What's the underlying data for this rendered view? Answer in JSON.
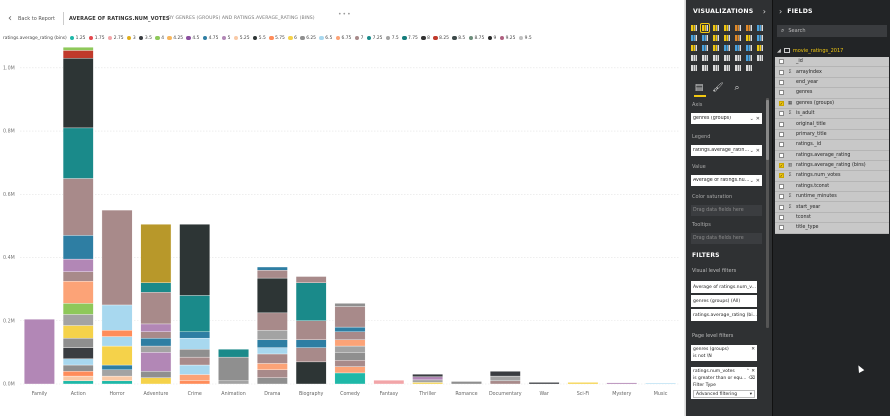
{
  "report": {
    "back_label": "Back to Report",
    "title": "AVERAGE OF RATINGS.NUM_VOTES",
    "subtitle": "BY GENRES (GROUPS) AND RATINGS.AVERAGE_RATING (BINS)"
  },
  "legend": {
    "title": "ratings.average_rating (bins)",
    "items": [
      {
        "label": "1.25",
        "color": "#1fb8a8"
      },
      {
        "label": "1.75",
        "color": "#e4484e"
      },
      {
        "label": "2.75",
        "color": "#f2a5a8"
      },
      {
        "label": "3",
        "color": "#e0ad1b"
      },
      {
        "label": "3.5",
        "color": "#3a3d41"
      },
      {
        "label": "4",
        "color": "#8ec85a"
      },
      {
        "label": "4.25",
        "color": "#f7b75e"
      },
      {
        "label": "4.5",
        "color": "#8b4f9f"
      },
      {
        "label": "4.75",
        "color": "#2e7ea3"
      },
      {
        "label": "5",
        "color": "#b287b6"
      },
      {
        "label": "5.25",
        "color": "#f9c9a6"
      },
      {
        "label": "5.5",
        "color": "#2d3535"
      },
      {
        "label": "5.75",
        "color": "#ff8c5a"
      },
      {
        "label": "6",
        "color": "#f5d24a"
      },
      {
        "label": "6.25",
        "color": "#8f8f8f"
      },
      {
        "label": "6.5",
        "color": "#a8d8ef"
      },
      {
        "label": "6.75",
        "color": "#fca377"
      },
      {
        "label": "7",
        "color": "#a88a8a"
      },
      {
        "label": "7.25",
        "color": "#1a8a8a"
      },
      {
        "label": "7.5",
        "color": "#a3a3a3"
      },
      {
        "label": "7.75",
        "color": "#147d7b"
      },
      {
        "label": "8",
        "color": "#333333"
      },
      {
        "label": "8.25",
        "color": "#c0392b"
      },
      {
        "label": "8.5",
        "color": "#3d4a4a"
      },
      {
        "label": "8.75",
        "color": "#6b8c7a"
      },
      {
        "label": "9",
        "color": "#2a2a2a"
      },
      {
        "label": "9.25",
        "color": "#b06080"
      },
      {
        "label": "9.5",
        "color": "#c0c0c0"
      }
    ]
  },
  "chart_data": {
    "type": "bar",
    "stacked": true,
    "title": "AVERAGE OF RATINGS.NUM_VOTES",
    "xlabel": "",
    "ylabel": "",
    "ylim": [
      0,
      1050000
    ],
    "y_ticks": [
      0,
      200000,
      400000,
      600000,
      800000,
      1000000
    ],
    "y_tick_labels": [
      "0.0M",
      "0.2M",
      "0.4M",
      "0.6M",
      "0.8M",
      "1.0M"
    ],
    "grid": true,
    "categories": [
      "Family",
      "Action",
      "Horror",
      "Adventure",
      "Crime",
      "Animation",
      "Drama",
      "Biography",
      "Comedy",
      "Fantasy",
      "Thriller",
      "Romance",
      "Documentary",
      "War",
      "Sci-Fi",
      "Mystery",
      "Music"
    ],
    "segments": [
      [
        {
          "value": 205000,
          "color": "#b287b6"
        }
      ],
      [
        {
          "value": 10000,
          "color": "#1fb8a8"
        },
        {
          "value": 15000,
          "color": "#f9c9a6"
        },
        {
          "value": 15000,
          "color": "#ff8c5a"
        },
        {
          "value": 20000,
          "color": "#8f8f8f"
        },
        {
          "value": 20000,
          "color": "#a8d8ef"
        },
        {
          "value": 35000,
          "color": "#3a3d41"
        },
        {
          "value": 30000,
          "color": "#8f8f8f"
        },
        {
          "value": 40000,
          "color": "#f5d24a"
        },
        {
          "value": 35000,
          "color": "#a3a3a3"
        },
        {
          "value": 35000,
          "color": "#8ec85a"
        },
        {
          "value": 70000,
          "color": "#fca377"
        },
        {
          "value": 30000,
          "color": "#a88a8a"
        },
        {
          "value": 40000,
          "color": "#b287b6"
        },
        {
          "value": 75000,
          "color": "#2e7ea3"
        },
        {
          "value": 180000,
          "color": "#a88a8a"
        },
        {
          "value": 160000,
          "color": "#1a8a8a"
        },
        {
          "value": 220000,
          "color": "#2d3535"
        },
        {
          "value": 25000,
          "color": "#c0392b"
        },
        {
          "value": 10000,
          "color": "#8ec85a"
        }
      ],
      [
        {
          "value": 10000,
          "color": "#1fb8a8"
        },
        {
          "value": 15000,
          "color": "#f9c9a6"
        },
        {
          "value": 20000,
          "color": "#a3a3a3"
        },
        {
          "value": 15000,
          "color": "#2e7ea3"
        },
        {
          "value": 60000,
          "color": "#f5d24a"
        },
        {
          "value": 30000,
          "color": "#a8d8ef"
        },
        {
          "value": 20000,
          "color": "#ff8c5a"
        },
        {
          "value": 80000,
          "color": "#a8d8ef"
        },
        {
          "value": 300000,
          "color": "#a88a8a"
        }
      ],
      [
        {
          "value": 20000,
          "color": "#f5d24a"
        },
        {
          "value": 20000,
          "color": "#8f8f8f"
        },
        {
          "value": 60000,
          "color": "#b287b6"
        },
        {
          "value": 20000,
          "color": "#a3a3a3"
        },
        {
          "value": 25000,
          "color": "#2e7ea3"
        },
        {
          "value": 20000,
          "color": "#a88a8a"
        },
        {
          "value": 25000,
          "color": "#b287b6"
        },
        {
          "value": 100000,
          "color": "#a88a8a"
        },
        {
          "value": 30000,
          "color": "#1a8a8a"
        },
        {
          "value": 185000,
          "color": "#b8982a"
        }
      ],
      [
        {
          "value": 10000,
          "color": "#ff8c5a"
        },
        {
          "value": 20000,
          "color": "#fca377"
        },
        {
          "value": 30000,
          "color": "#a8d8ef"
        },
        {
          "value": 25000,
          "color": "#a88a8a"
        },
        {
          "value": 25000,
          "color": "#8f8f8f"
        },
        {
          "value": 35000,
          "color": "#a8d8ef"
        },
        {
          "value": 20000,
          "color": "#2e7ea3"
        },
        {
          "value": 115000,
          "color": "#1a8a8a"
        },
        {
          "value": 225000,
          "color": "#2d3535"
        }
      ],
      [
        {
          "value": 10000,
          "color": "#a3a3a3"
        },
        {
          "value": 75000,
          "color": "#8f8f8f"
        },
        {
          "value": 25000,
          "color": "#1a8a8a"
        }
      ],
      [
        {
          "value": 20000,
          "color": "#8f8f8f"
        },
        {
          "value": 25000,
          "color": "#a88a8a"
        },
        {
          "value": 20000,
          "color": "#fca377"
        },
        {
          "value": 30000,
          "color": "#a88a8a"
        },
        {
          "value": 20000,
          "color": "#a8d8ef"
        },
        {
          "value": 25000,
          "color": "#2e7ea3"
        },
        {
          "value": 30000,
          "color": "#a3a3a3"
        },
        {
          "value": 55000,
          "color": "#a88a8a"
        },
        {
          "value": 110000,
          "color": "#2d3535"
        },
        {
          "value": 25000,
          "color": "#a88a8a"
        },
        {
          "value": 10000,
          "color": "#2e7ea3"
        }
      ],
      [
        {
          "value": 70000,
          "color": "#2d3535"
        },
        {
          "value": 45000,
          "color": "#a88a8a"
        },
        {
          "value": 25000,
          "color": "#2e7ea3"
        },
        {
          "value": 60000,
          "color": "#a88a8a"
        },
        {
          "value": 120000,
          "color": "#1a8a8a"
        },
        {
          "value": 20000,
          "color": "#a88a8a"
        }
      ],
      [
        {
          "value": 35000,
          "color": "#1fb8a8"
        },
        {
          "value": 20000,
          "color": "#fca377"
        },
        {
          "value": 20000,
          "color": "#a88a8a"
        },
        {
          "value": 25000,
          "color": "#8f8f8f"
        },
        {
          "value": 20000,
          "color": "#a3a3a3"
        },
        {
          "value": 20000,
          "color": "#fca377"
        },
        {
          "value": 25000,
          "color": "#a88a8a"
        },
        {
          "value": 15000,
          "color": "#2e7ea3"
        },
        {
          "value": 65000,
          "color": "#a88a8a"
        },
        {
          "value": 10000,
          "color": "#8f8f8f"
        }
      ],
      [
        {
          "value": 12000,
          "color": "#f2a5a8"
        }
      ],
      [
        {
          "value": 5000,
          "color": "#f5d24a"
        },
        {
          "value": 8000,
          "color": "#a3a3a3"
        },
        {
          "value": 10000,
          "color": "#b287b6"
        },
        {
          "value": 8000,
          "color": "#3a3d41"
        }
      ],
      [
        {
          "value": 8000,
          "color": "#8f8f8f"
        }
      ],
      [
        {
          "value": 10000,
          "color": "#a88a8a"
        },
        {
          "value": 15000,
          "color": "#a3a3a3"
        },
        {
          "value": 15000,
          "color": "#3a3d41"
        }
      ],
      [
        {
          "value": 5000,
          "color": "#3a3d41"
        }
      ],
      [
        {
          "value": 5000,
          "color": "#f5d24a"
        }
      ],
      [
        {
          "value": 4000,
          "color": "#b287b6"
        }
      ],
      [
        {
          "value": 3000,
          "color": "#a8d8ef"
        }
      ]
    ]
  },
  "visualizations": {
    "title": "VISUALIZATIONS",
    "icons": [
      {
        "name": "stacked-bar-icon",
        "color": "#f2c811"
      },
      {
        "name": "stacked-column-icon",
        "color": "#f2c811"
      },
      {
        "name": "clustered-bar-icon",
        "color": "#f2c811"
      },
      {
        "name": "clustered-column-icon",
        "color": "#f2c811"
      },
      {
        "name": "100-bar-icon",
        "color": "#e08a2a"
      },
      {
        "name": "100-column-icon",
        "color": "#e08a2a"
      },
      {
        "name": "line-chart-icon",
        "color": "#4aa3df"
      },
      {
        "name": "area-chart-icon",
        "color": "#4aa3df"
      },
      {
        "name": "stacked-area-icon",
        "color": "#4aa3df"
      },
      {
        "name": "line-column-icon",
        "color": "#f2c811"
      },
      {
        "name": "line-stacked-icon",
        "color": "#f2c811"
      },
      {
        "name": "ribbon-chart-icon",
        "color": "#e08a2a"
      },
      {
        "name": "waterfall-icon",
        "color": "#f2c811"
      },
      {
        "name": "scatter-icon",
        "color": "#4aa3df"
      },
      {
        "name": "pie-chart-icon",
        "color": "#f2c811"
      },
      {
        "name": "donut-chart-icon",
        "color": "#4aa3df"
      },
      {
        "name": "treemap-icon",
        "color": "#f2c811"
      },
      {
        "name": "map-icon",
        "color": "#4aa3df"
      },
      {
        "name": "filled-map-icon",
        "color": "#4aa3df"
      },
      {
        "name": "funnel-icon",
        "color": "#4aa3df"
      },
      {
        "name": "gauge-icon",
        "color": "#f2c811"
      },
      {
        "name": "card-icon",
        "color": "#dddddd"
      },
      {
        "name": "multirow-card-icon",
        "color": "#dddddd"
      },
      {
        "name": "kpi-icon",
        "color": "#dddddd"
      },
      {
        "name": "slicer-icon",
        "color": "#dddddd"
      },
      {
        "name": "table-icon",
        "color": "#dddddd"
      },
      {
        "name": "matrix-icon",
        "color": "#4aa3df"
      },
      {
        "name": "arcgis-icon",
        "color": "#dddddd"
      },
      {
        "name": "shape-map-icon",
        "color": "#dddddd"
      },
      {
        "name": "custom-visual-icon",
        "color": "#dddddd"
      },
      {
        "name": "grid-visual-icon",
        "color": "#dddddd"
      },
      {
        "name": "r-visual-icon",
        "color": "#dddddd"
      },
      {
        "name": "globe-icon",
        "color": "#dddddd"
      },
      {
        "name": "more-visuals-icon",
        "color": "#dddddd"
      }
    ],
    "wells": {
      "axis_label": "Axis",
      "axis_value": "genres (groups)",
      "legend_label": "Legend",
      "legend_value": "ratings.average_rating (bins)",
      "value_label": "Value",
      "value_value": "Average of ratings.num_votes",
      "color_sat_label": "Color saturation",
      "color_sat_placeholder": "Drag data fields here",
      "tooltips_label": "Tooltips",
      "tooltips_placeholder": "Drag data fields here"
    },
    "filters": {
      "title": "FILTERS",
      "visual_label": "Visual level filters",
      "visual_items": [
        "Average of ratings.num_v...",
        "genres (groups) (All)",
        "ratings.average_rating (bi..."
      ],
      "page_label": "Page level filters",
      "genres_card": {
        "name": "genres (groups)",
        "condition": "is not \\N"
      },
      "votes_card": {
        "name": "ratings.num_votes",
        "condition": "is greater than or equ...",
        "filter_type_label": "Filter Type",
        "filter_type_value": "Advanced filtering"
      }
    }
  },
  "fields": {
    "title": "FIELDS",
    "search_placeholder": "Search",
    "table_name": "movie_ratings_2017",
    "items": [
      {
        "name": "_id",
        "checked": false,
        "icon": ""
      },
      {
        "name": "arrayIndex",
        "checked": false,
        "icon": "Σ"
      },
      {
        "name": "end_year",
        "checked": false,
        "icon": ""
      },
      {
        "name": "genres",
        "checked": false,
        "icon": ""
      },
      {
        "name": "genres (groups)",
        "checked": true,
        "icon": "▦"
      },
      {
        "name": "is_adult",
        "checked": false,
        "icon": "Σ"
      },
      {
        "name": "original_title",
        "checked": false,
        "icon": ""
      },
      {
        "name": "primary_title",
        "checked": false,
        "icon": ""
      },
      {
        "name": "ratings._id",
        "checked": false,
        "icon": ""
      },
      {
        "name": "ratings.average_rating",
        "checked": false,
        "icon": ""
      },
      {
        "name": "ratings.average_rating (bins)",
        "checked": true,
        "icon": "▥"
      },
      {
        "name": "ratings.num_votes",
        "checked": true,
        "icon": "Σ"
      },
      {
        "name": "ratings.tconst",
        "checked": false,
        "icon": ""
      },
      {
        "name": "runtime_minutes",
        "checked": false,
        "icon": "Σ"
      },
      {
        "name": "start_year",
        "checked": false,
        "icon": "Σ"
      },
      {
        "name": "tconst",
        "checked": false,
        "icon": ""
      },
      {
        "name": "title_type",
        "checked": false,
        "icon": ""
      }
    ]
  }
}
